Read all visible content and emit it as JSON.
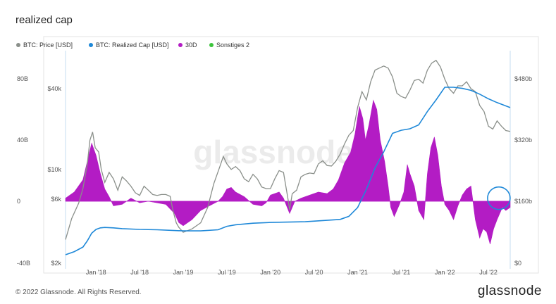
{
  "page": {
    "title": "realized cap",
    "copyright": "© 2022 Glassnode. All Rights Reserved.",
    "logo": "glassnode",
    "watermark": "glassnode"
  },
  "colors": {
    "price": "#8a8f8a",
    "realized_cap": "#1e88d8",
    "change_30d": "#b31cc4",
    "sma": "#3cc43c",
    "highlight_circle": "#1e88d8"
  },
  "chart_data": {
    "type": "line",
    "legend": [
      {
        "name": "BTC: Price [USD]",
        "color": "#8a8f8a"
      },
      {
        "name": "BTC: Realized Cap [USD]",
        "color": "#1e88d8"
      },
      {
        "name": "30D",
        "color": "#b31cc4"
      },
      {
        "name": "Sonstiges 2",
        "color": "#3cc43c"
      }
    ],
    "legend_placement": "top-left",
    "x_ticks": [
      "Jan '18",
      "Jul '18",
      "Jan '19",
      "Jul '19",
      "Jan '20",
      "Jul '20",
      "Jan '21",
      "Jul '21",
      "Jan '22",
      "Jul '22"
    ],
    "x_tick_positions": [
      2018.0,
      2018.5,
      2019.0,
      2019.5,
      2020.0,
      2020.5,
      2021.0,
      2021.5,
      2022.0,
      2022.5
    ],
    "x_range": [
      2017.65,
      2022.75
    ],
    "axes": {
      "change_30d": {
        "ticks": [
          "80B",
          "40B",
          "0",
          "-40B"
        ],
        "range": [
          -40,
          80
        ],
        "unit": "B"
      },
      "price": {
        "ticks": [
          "$40k",
          "$10k",
          "$6k",
          "$2k"
        ],
        "tick_values": [
          40000,
          10000,
          6000,
          2000
        ],
        "scale": "log"
      },
      "realized_cap": {
        "ticks": [
          "$480b",
          "$320b",
          "$160b",
          "$0"
        ],
        "range": [
          0,
          480
        ],
        "unit": "b"
      }
    },
    "series": [
      {
        "name": "BTC: Price [USD]",
        "x": [
          2017.65,
          2017.72,
          2017.8,
          2017.85,
          2017.9,
          2017.93,
          2017.96,
          2017.99,
          2018.03,
          2018.06,
          2018.1,
          2018.15,
          2018.2,
          2018.25,
          2018.3,
          2018.35,
          2018.4,
          2018.45,
          2018.5,
          2018.55,
          2018.6,
          2018.65,
          2018.7,
          2018.75,
          2018.8,
          2018.85,
          2018.88,
          2018.92,
          2018.95,
          2019.0,
          2019.05,
          2019.1,
          2019.2,
          2019.28,
          2019.35,
          2019.42,
          2019.46,
          2019.5,
          2019.55,
          2019.6,
          2019.65,
          2019.7,
          2019.75,
          2019.8,
          2019.85,
          2019.9,
          2019.95,
          2020.0,
          2020.05,
          2020.1,
          2020.15,
          2020.2,
          2020.22,
          2020.25,
          2020.3,
          2020.35,
          2020.4,
          2020.45,
          2020.5,
          2020.55,
          2020.6,
          2020.65,
          2020.7,
          2020.75,
          2020.8,
          2020.85,
          2020.9,
          2020.95,
          2021.0,
          2021.05,
          2021.1,
          2021.15,
          2021.2,
          2021.25,
          2021.3,
          2021.35,
          2021.4,
          2021.45,
          2021.5,
          2021.55,
          2021.6,
          2021.65,
          2021.7,
          2021.75,
          2021.8,
          2021.85,
          2021.9,
          2021.95,
          2022.0,
          2022.05,
          2022.1,
          2022.15,
          2022.2,
          2022.25,
          2022.3,
          2022.35,
          2022.4,
          2022.45,
          2022.5,
          2022.55,
          2022.6,
          2022.65,
          2022.7,
          2022.75
        ],
        "values": [
          3000,
          4300,
          5600,
          7200,
          11000,
          16500,
          19000,
          14500,
          13500,
          10000,
          8000,
          9500,
          8500,
          7000,
          8800,
          8200,
          7500,
          6700,
          6400,
          7500,
          7000,
          6500,
          6400,
          6500,
          6500,
          6300,
          5000,
          4000,
          3700,
          3400,
          3500,
          3600,
          4000,
          5200,
          7800,
          10500,
          12500,
          11000,
          10000,
          10500,
          9800,
          8500,
          8100,
          9200,
          8500,
          7400,
          7200,
          7200,
          8500,
          9800,
          9500,
          6100,
          5000,
          6600,
          7000,
          8800,
          9200,
          9400,
          9300,
          11000,
          11600,
          10700,
          10600,
          11500,
          13000,
          15500,
          18000,
          19500,
          29000,
          38000,
          33000,
          45000,
          55000,
          57000,
          59000,
          57000,
          49000,
          37000,
          35000,
          34000,
          39000,
          46000,
          47000,
          44000,
          55000,
          62000,
          65000,
          58000,
          47000,
          40000,
          37000,
          42000,
          42000,
          45000,
          40000,
          38000,
          30000,
          27000,
          21000,
          20000,
          23000,
          21000,
          19500,
          19200
        ]
      },
      {
        "name": "BTC: Realized Cap [USD]",
        "x": [
          2017.65,
          2017.75,
          2017.85,
          2017.9,
          2017.95,
          2018.0,
          2018.05,
          2018.1,
          2018.2,
          2018.3,
          2018.5,
          2018.7,
          2018.9,
          2019.0,
          2019.2,
          2019.4,
          2019.5,
          2019.6,
          2019.8,
          2020.0,
          2020.2,
          2020.4,
          2020.6,
          2020.8,
          2020.9,
          2021.0,
          2021.1,
          2021.2,
          2021.3,
          2021.4,
          2021.5,
          2021.6,
          2021.7,
          2021.8,
          2021.9,
          2022.0,
          2022.1,
          2022.2,
          2022.3,
          2022.4,
          2022.5,
          2022.6,
          2022.75
        ],
        "values": [
          22,
          30,
          42,
          58,
          78,
          88,
          92,
          93,
          92,
          90,
          88,
          87,
          85,
          84,
          84,
          87,
          96,
          100,
          104,
          106,
          107,
          108,
          111,
          114,
          122,
          145,
          192,
          248,
          290,
          338,
          346,
          350,
          360,
          395,
          425,
          458,
          458,
          455,
          450,
          440,
          428,
          418,
          405
        ]
      },
      {
        "name": "30D",
        "x": [
          2017.65,
          2017.75,
          2017.85,
          2017.9,
          2017.95,
          2018.0,
          2018.05,
          2018.1,
          2018.15,
          2018.2,
          2018.3,
          2018.4,
          2018.5,
          2018.6,
          2018.7,
          2018.8,
          2018.9,
          2018.95,
          2019.0,
          2019.1,
          2019.2,
          2019.3,
          2019.4,
          2019.45,
          2019.5,
          2019.55,
          2019.6,
          2019.7,
          2019.8,
          2019.9,
          2019.95,
          2020.0,
          2020.1,
          2020.15,
          2020.22,
          2020.28,
          2020.35,
          2020.45,
          2020.55,
          2020.65,
          2020.72,
          2020.78,
          2020.85,
          2020.92,
          2020.97,
          2021.02,
          2021.06,
          2021.09,
          2021.13,
          2021.18,
          2021.22,
          2021.26,
          2021.31,
          2021.35,
          2021.38,
          2021.42,
          2021.48,
          2021.53,
          2021.57,
          2021.6,
          2021.65,
          2021.7,
          2021.76,
          2021.8,
          2021.84,
          2021.88,
          2021.92,
          2021.96,
          2022.0,
          2022.05,
          2022.1,
          2022.15,
          2022.2,
          2022.25,
          2022.3,
          2022.35,
          2022.4,
          2022.44,
          2022.48,
          2022.52,
          2022.56,
          2022.6,
          2022.66,
          2022.7,
          2022.75
        ],
        "values": [
          2,
          6,
          14,
          26,
          38,
          30,
          18,
          8,
          3,
          -3,
          -2,
          2,
          -1,
          0,
          -1,
          -2,
          -8,
          -14,
          -16,
          -12,
          -6,
          -3,
          0,
          3,
          8,
          9,
          6,
          3,
          -2,
          -3,
          -1,
          4,
          6,
          2,
          -8,
          0,
          2,
          4,
          6,
          5,
          8,
          14,
          25,
          32,
          44,
          62,
          54,
          40,
          50,
          66,
          60,
          40,
          26,
          10,
          -4,
          -10,
          -2,
          6,
          24,
          18,
          10,
          -6,
          -12,
          18,
          35,
          42,
          30,
          10,
          -2,
          -6,
          -12,
          -3,
          4,
          8,
          10,
          -12,
          -24,
          -18,
          -20,
          -28,
          -18,
          -12,
          -4,
          -6,
          -4
        ]
      }
    ],
    "annotations": [
      {
        "type": "circle",
        "x": 2022.62,
        "value_30d": 2,
        "color": "#1e88d8"
      }
    ]
  }
}
